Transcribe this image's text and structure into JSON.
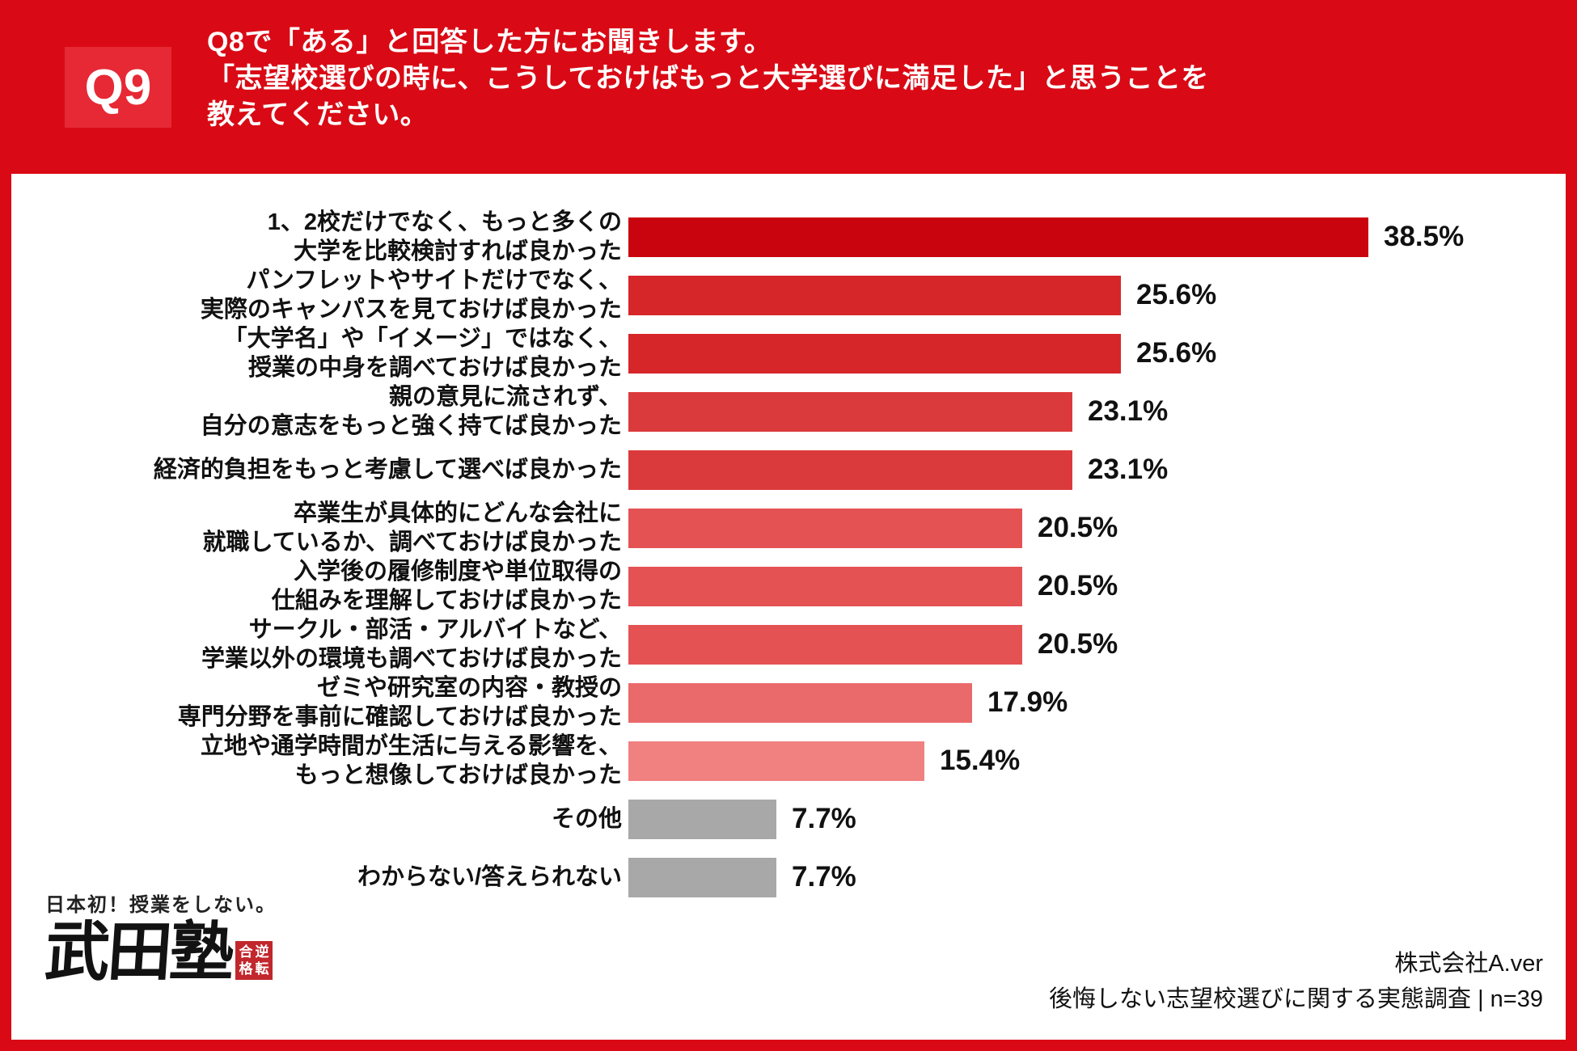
{
  "header": {
    "badge": "Q9",
    "question_lines": [
      "Q8で「ある」と回答した方にお聞きします。",
      "「志望校選びの時に、こうしておけばもっと大学選びに満足した」と思うことを",
      "教えてください。"
    ]
  },
  "chart_data": {
    "type": "bar",
    "orientation": "horizontal",
    "unit": "%",
    "xlim": [
      0,
      40
    ],
    "value_labels_shown": true,
    "grid": false,
    "rows": [
      {
        "label_lines": [
          "1、2校だけでなく、もっと多くの",
          "大学を比較検討すれば良かった"
        ],
        "value": 38.5,
        "display": "38.5%",
        "color": "#ca040f"
      },
      {
        "label_lines": [
          "パンフレットやサイトだけでなく、",
          "実際のキャンパスを見ておけば良かった"
        ],
        "value": 25.6,
        "display": "25.6%",
        "color": "#d62629"
      },
      {
        "label_lines": [
          "「大学名」や「イメージ」ではなく、",
          "授業の中身を調べておけば良かった"
        ],
        "value": 25.6,
        "display": "25.6%",
        "color": "#d62629"
      },
      {
        "label_lines": [
          "親の意見に流されず、",
          "自分の意志をもっと強く持てば良かった"
        ],
        "value": 23.1,
        "display": "23.1%",
        "color": "#db3a3c"
      },
      {
        "label_lines": [
          "経済的負担をもっと考慮して選べば良かった"
        ],
        "value": 23.1,
        "display": "23.1%",
        "color": "#db3a3c"
      },
      {
        "label_lines": [
          "卒業生が具体的にどんな会社に",
          "就職しているか、調べておけば良かった"
        ],
        "value": 20.5,
        "display": "20.5%",
        "color": "#e45253"
      },
      {
        "label_lines": [
          "入学後の履修制度や単位取得の",
          "仕組みを理解しておけば良かった"
        ],
        "value": 20.5,
        "display": "20.5%",
        "color": "#e45253"
      },
      {
        "label_lines": [
          "サークル・部活・アルバイトなど、",
          "学業以外の環境も調べておけば良かった"
        ],
        "value": 20.5,
        "display": "20.5%",
        "color": "#e45253"
      },
      {
        "label_lines": [
          "ゼミや研究室の内容・教授の",
          "専門分野を事前に確認しておけば良かった"
        ],
        "value": 17.9,
        "display": "17.9%",
        "color": "#ea696a"
      },
      {
        "label_lines": [
          "立地や通学時間が生活に与える影響を、",
          "もっと想像しておけば良かった"
        ],
        "value": 15.4,
        "display": "15.4%",
        "color": "#f18081"
      },
      {
        "label_lines": [
          "その他"
        ],
        "value": 7.7,
        "display": "7.7%",
        "color": "#a8a8a8"
      },
      {
        "label_lines": [
          "わからない/答えられない"
        ],
        "value": 7.7,
        "display": "7.7%",
        "color": "#a8a8a8"
      }
    ]
  },
  "logo": {
    "tagline": "日本初！授業をしない。",
    "name": "武田塾",
    "stamp_chars": [
      "合",
      "逆",
      "格",
      "転"
    ]
  },
  "footer": {
    "company": "株式会社A.ver",
    "survey": "後悔しない志望校選びに関する実態調査 | n=39"
  },
  "colors": {
    "page_red": "#d90a15",
    "badge_red": "#e62934",
    "stamp_red": "#c1272d",
    "gray_bar": "#a8a8a8",
    "text": "#111111"
  }
}
